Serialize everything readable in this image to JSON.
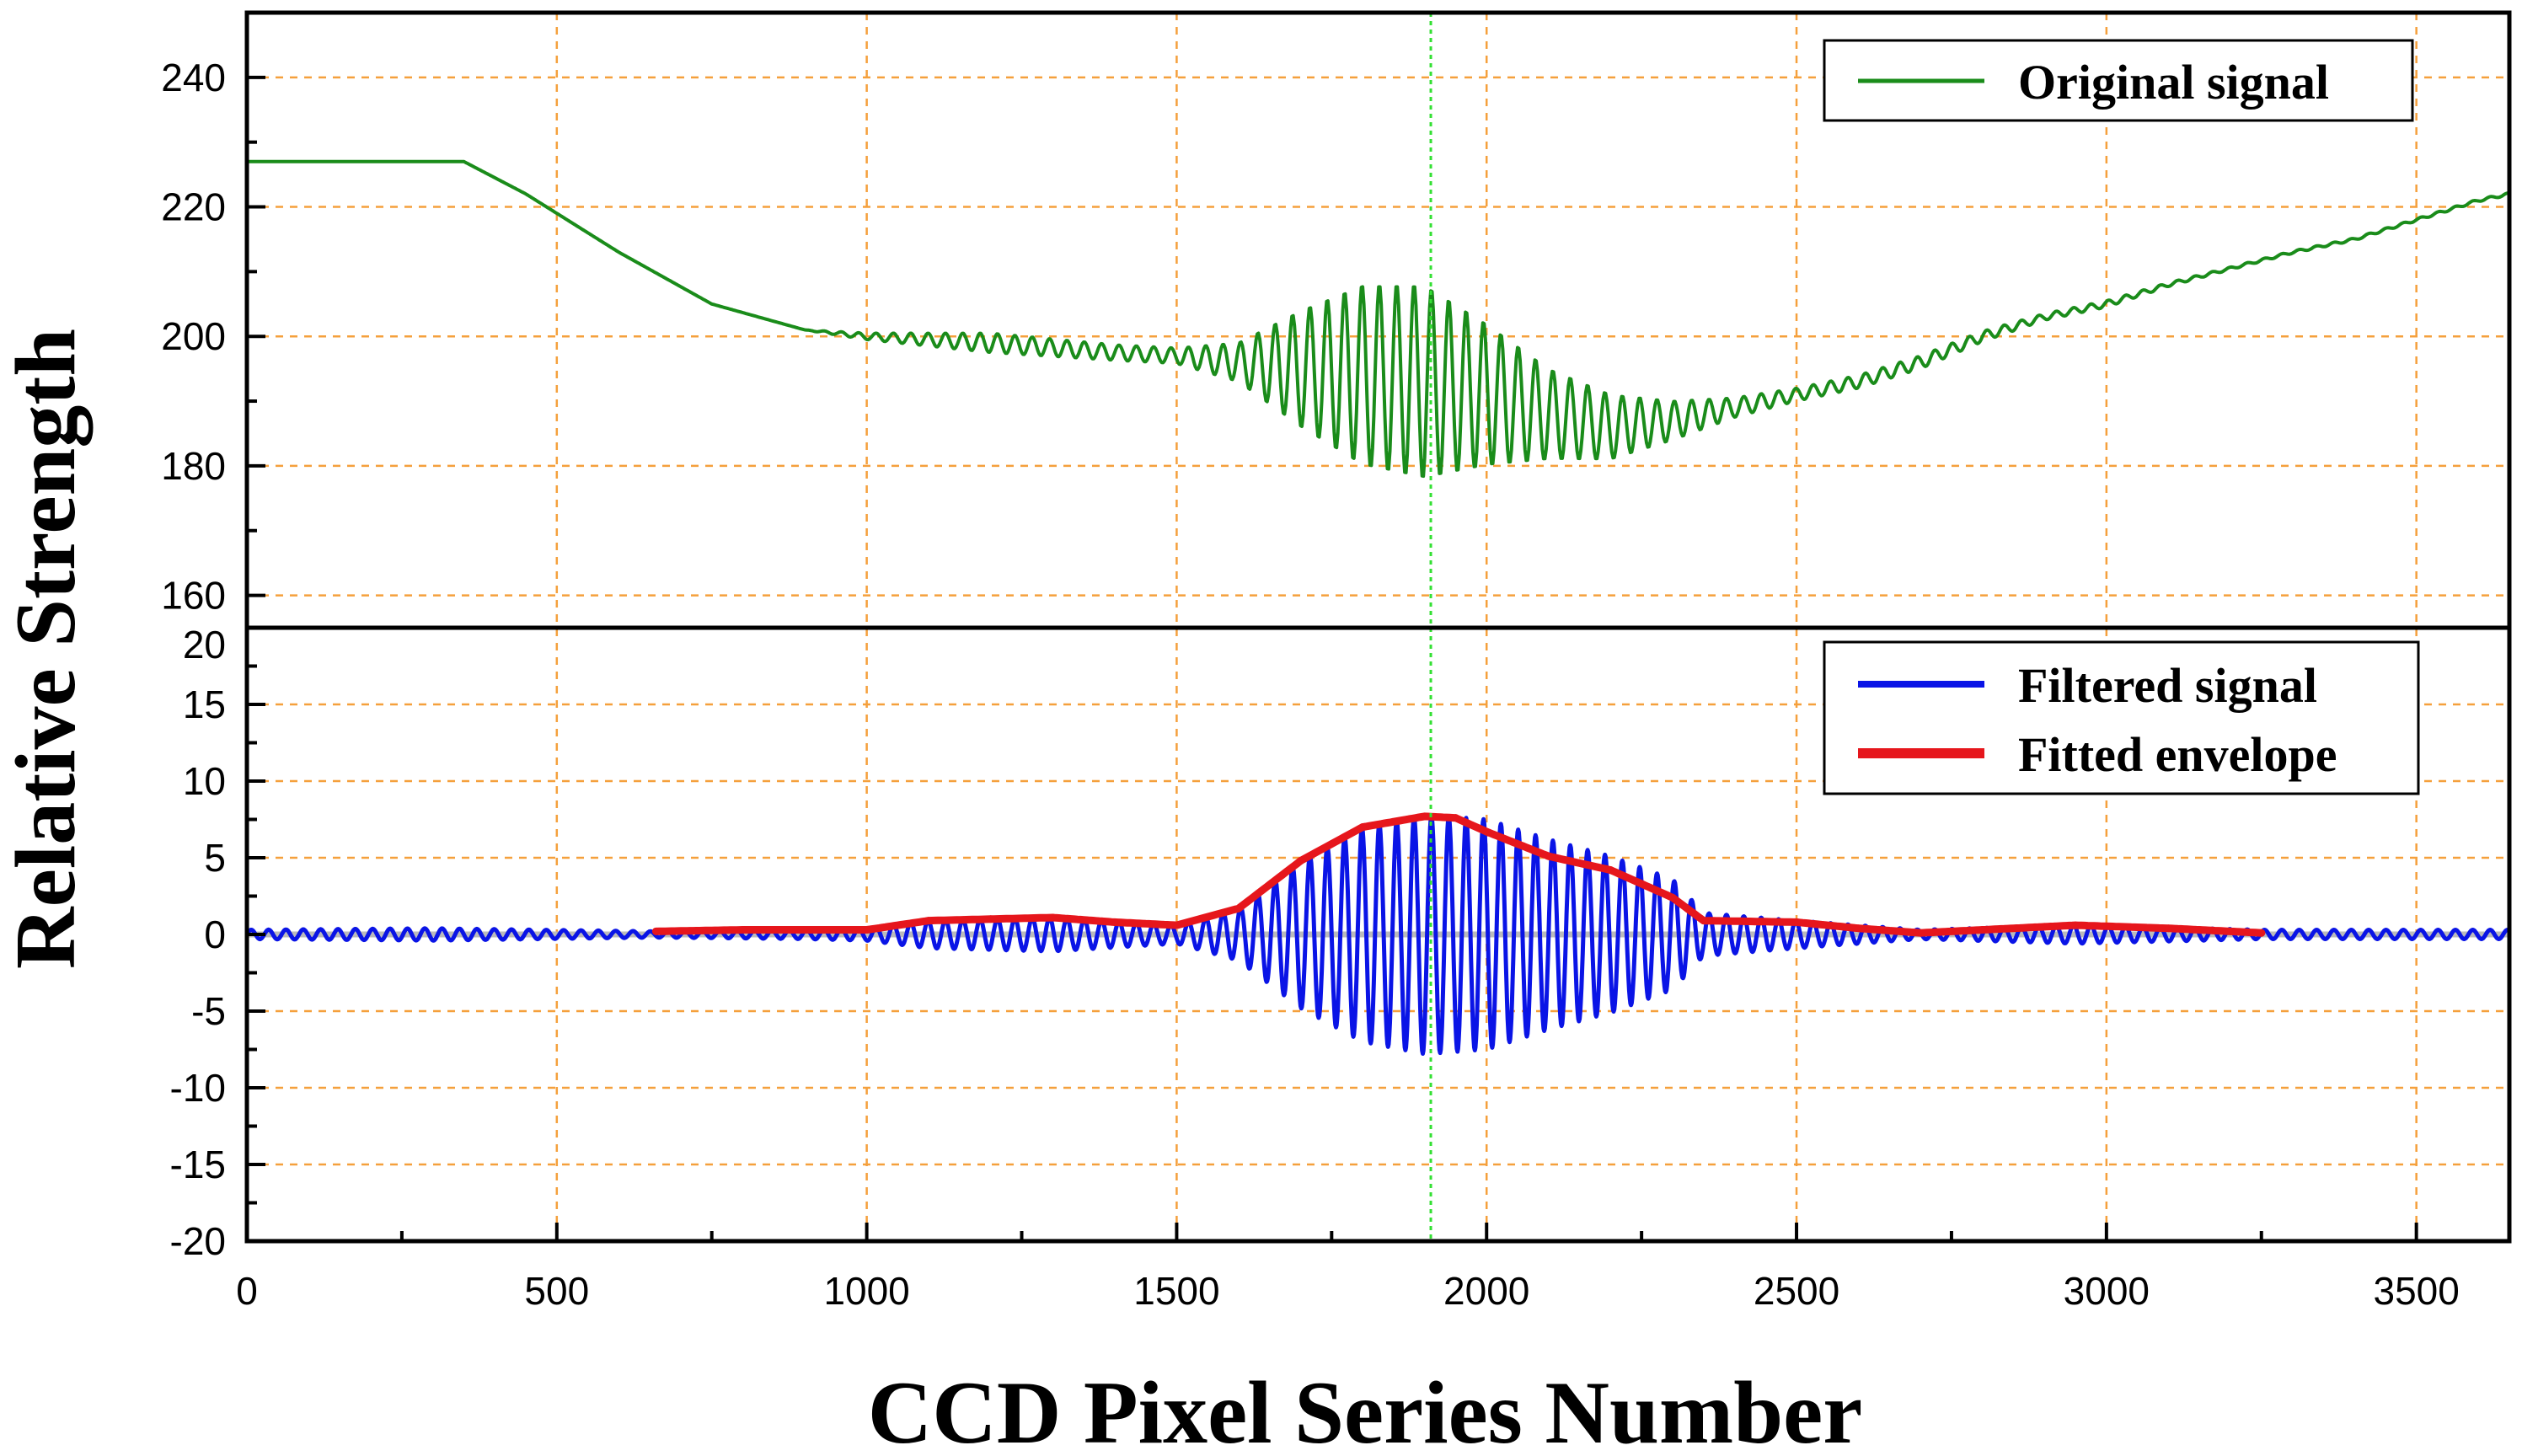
{
  "chart_data": {
    "type": "line",
    "xlabel": "CCD Pixel Series Number",
    "ylabel": "Relative Strength",
    "xlim": [
      0,
      3650
    ],
    "x_ticks": [
      0,
      500,
      1000,
      1500,
      2000,
      2500,
      3000,
      3500
    ],
    "x_tick_labels": [
      "0",
      "500",
      "1000",
      "1500",
      "2000",
      "2500",
      "3000",
      "3500"
    ],
    "grid": true,
    "grid_style": "dashed",
    "colors": {
      "grid": "#f5a03c",
      "original": "#1a8c1a",
      "filtered": "#0a14e6",
      "envelope": "#e6161c",
      "baseline": "#bbbbbb",
      "marker": "#33e033"
    },
    "marker_x": 1910,
    "panels": [
      {
        "id": "top",
        "ylim": [
          155,
          250
        ],
        "y_ticks": [
          160,
          180,
          200,
          220,
          240
        ],
        "y_tick_labels": [
          "160",
          "180",
          "200",
          "220",
          "240"
        ],
        "legend_position": "top-right",
        "series": [
          {
            "name": "Original signal",
            "style": "line",
            "x": [
              0,
              350,
              450,
              600,
              750,
              900,
              1000,
              1200,
              1400,
              1500,
              1600,
              1700,
              1800,
              1900,
              2000,
              2100,
              2200,
              2300,
              2400,
              2500,
              2600,
              2700,
              2800,
              2900,
              3000,
              3100,
              3200,
              3300,
              3400,
              3500,
              3600,
              3650
            ],
            "baseline": [
              227,
              227,
              222,
              213,
              205,
              201,
              200,
              199,
              197.5,
              197,
              196,
              195,
              194,
              193,
              191,
              188,
              186,
              187,
              189,
              191,
              193,
              196,
              200,
              203,
              205,
              208,
              210.5,
              213,
              215,
              218,
              221,
              222
            ],
            "oscillation_amplitude": [
              0,
              0,
              0,
              0,
              0,
              0,
              0.5,
              1.5,
              1.2,
              1.2,
              3,
              9,
              14,
              15,
              11,
              7,
              5,
              3,
              1.5,
              1,
              1,
              1,
              0.8,
              0.5,
              0.5,
              0.3,
              0.2,
              0.2,
              0.2,
              0.2,
              0.2,
              0.2
            ],
            "oscillation_period": 28
          }
        ]
      },
      {
        "id": "bottom",
        "ylim": [
          -20,
          20
        ],
        "y_ticks": [
          -20,
          -15,
          -10,
          -5,
          0,
          5,
          10,
          15,
          20
        ],
        "y_tick_labels": [
          "-20",
          "-15",
          "-10",
          "-5",
          "0",
          "5",
          "10",
          "15",
          "20"
        ],
        "legend_position": "top-right",
        "series": [
          {
            "name": "Filtered signal",
            "style": "line",
            "x": [
              0,
              300,
              660,
              900,
              1000,
              1100,
              1300,
              1500,
              1600,
              1700,
              1800,
              1900,
              2000,
              2100,
              2200,
              2300,
              2350,
              2500,
              2700,
              2950,
              3250,
              3650
            ],
            "amplitude": [
              0.3,
              0.4,
              0.2,
              0.3,
              0.4,
              0.9,
              1.1,
              0.6,
              1.7,
              4.8,
              7,
              7.8,
              7.5,
              6.2,
              5.1,
              3.6,
              1.4,
              0.9,
              0.3,
              0.6,
              0.3,
              0.3
            ],
            "oscillation_period": 28
          },
          {
            "name": "Fitted envelope",
            "style": "line",
            "x": [
              660,
              800,
              900,
              1000,
              1100,
              1200,
              1300,
              1400,
              1500,
              1600,
              1700,
              1800,
              1900,
              1950,
              2000,
              2100,
              2200,
              2300,
              2350,
              2500,
              2600,
              2700,
              2800,
              2900,
              2950,
              3100,
              3250
            ],
            "y": [
              0.2,
              0.3,
              0.3,
              0.3,
              0.9,
              1.0,
              1.1,
              0.8,
              0.6,
              1.7,
              4.8,
              7.0,
              7.7,
              7.6,
              6.7,
              5.1,
              4.2,
              2.4,
              0.9,
              0.8,
              0.4,
              0.1,
              0.3,
              0.5,
              0.6,
              0.4,
              0.1
            ]
          }
        ]
      }
    ]
  }
}
